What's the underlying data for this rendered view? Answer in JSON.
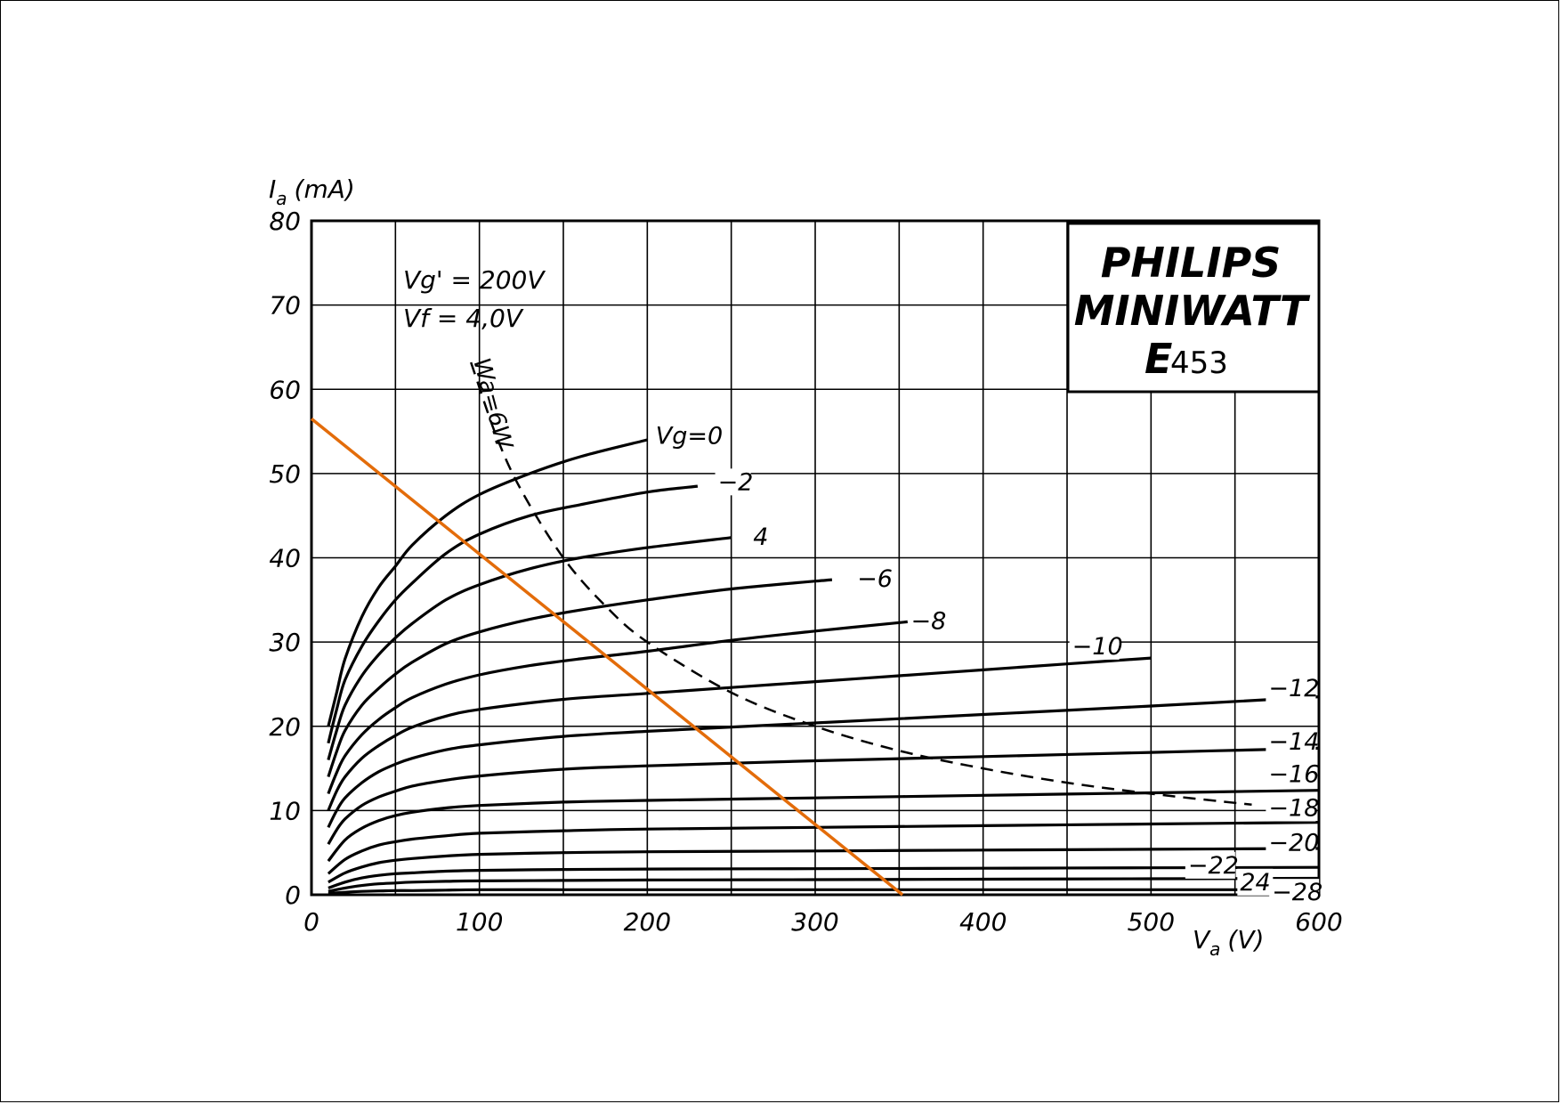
{
  "chart_data": {
    "type": "line",
    "ylabel_main": "I",
    "ylabel_sub": "a",
    "ylabel_unit": "(mA)",
    "xlabel_main": "V",
    "xlabel_sub": "a",
    "xlabel_unit": "(V)",
    "xlim": [
      0,
      600
    ],
    "ylim": [
      0,
      80
    ],
    "x_ticks": [
      "0",
      "100",
      "200",
      "300",
      "400",
      "500",
      "600"
    ],
    "y_ticks": [
      "0",
      "10",
      "20",
      "30",
      "40",
      "50",
      "60",
      "70",
      "80"
    ],
    "grid": true,
    "conditions": {
      "vg2": "Vg' = 200V",
      "vf": "Vf = 4,0V"
    },
    "brand_box": {
      "line1": "PHILIPS",
      "line2": "MINIWATT",
      "line3_main": "E",
      "line3_num": "453"
    },
    "dissipation_curve": {
      "label": "Wa=6W",
      "x": [
        95,
        110,
        125,
        150,
        175,
        200,
        250,
        300,
        350,
        400,
        450,
        500,
        560
      ],
      "y": [
        63.2,
        54.5,
        48,
        40,
        34.3,
        30,
        24,
        20,
        17.1,
        15,
        13.3,
        12,
        10.7
      ]
    },
    "series": [
      {
        "name": "Vg=0",
        "label_x": 205,
        "label_y": 54.5,
        "x": [
          10,
          15,
          20,
          30,
          40,
          50,
          60,
          80,
          100,
          130,
          160,
          200
        ],
        "y": [
          20,
          24,
          28,
          33,
          36.5,
          39,
          41.5,
          45,
          47.5,
          50,
          52,
          54
        ]
      },
      {
        "name": "−2",
        "label_x": 242,
        "label_y": 49,
        "x": [
          10,
          15,
          20,
          30,
          40,
          50,
          60,
          80,
          100,
          130,
          160,
          200,
          230
        ],
        "y": [
          18,
          22,
          25.5,
          29.5,
          32.5,
          35,
          37,
          40.5,
          42.8,
          45,
          46.3,
          47.8,
          48.5
        ]
      },
      {
        "name": "4",
        "label_x": 263,
        "label_y": 42.5,
        "x": [
          10,
          15,
          20,
          30,
          40,
          50,
          60,
          80,
          100,
          130,
          160,
          200,
          250
        ],
        "y": [
          16,
          19.5,
          22.5,
          26,
          28.5,
          30.5,
          32.2,
          35,
          36.8,
          38.7,
          40,
          41.2,
          42.4
        ]
      },
      {
        "name": "−6",
        "label_x": 325,
        "label_y": 37.5,
        "x": [
          10,
          15,
          20,
          30,
          40,
          50,
          60,
          80,
          100,
          130,
          160,
          200,
          250,
          310
        ],
        "y": [
          14,
          17,
          19.5,
          22.5,
          24.5,
          26.2,
          27.6,
          29.8,
          31.2,
          32.7,
          33.8,
          35,
          36.3,
          37.4
        ]
      },
      {
        "name": "−8",
        "label_x": 357,
        "label_y": 32.5,
        "x": [
          10,
          15,
          20,
          30,
          40,
          50,
          60,
          80,
          100,
          130,
          160,
          200,
          250,
          300,
          355
        ],
        "y": [
          12,
          14.5,
          16.5,
          19,
          20.8,
          22.2,
          23.4,
          25,
          26.1,
          27.2,
          28,
          28.9,
          30.2,
          31.3,
          32.4
        ]
      },
      {
        "name": "−10",
        "label_x": 453,
        "label_y": 29.5,
        "x": [
          10,
          15,
          20,
          30,
          40,
          50,
          60,
          80,
          100,
          150,
          200,
          250,
          300,
          350,
          400,
          450,
          500
        ],
        "y": [
          10,
          12.3,
          14,
          16.2,
          17.7,
          18.9,
          19.9,
          21.2,
          22,
          23.2,
          23.9,
          24.6,
          25.3,
          26,
          26.7,
          27.4,
          28.1
        ]
      },
      {
        "name": "−12",
        "label_x": 570,
        "label_y": 24.5,
        "x": [
          10,
          15,
          20,
          30,
          40,
          50,
          60,
          80,
          100,
          150,
          200,
          300,
          400,
          500,
          600
        ],
        "y": [
          8,
          10,
          11.5,
          13.3,
          14.6,
          15.5,
          16.2,
          17.2,
          17.8,
          18.8,
          19.4,
          20.4,
          21.4,
          22.4,
          23.5
        ]
      },
      {
        "name": "−14",
        "label_x": 570,
        "label_y": 18.2,
        "x": [
          10,
          15,
          20,
          30,
          40,
          50,
          60,
          80,
          100,
          150,
          200,
          300,
          400,
          500,
          600
        ],
        "y": [
          6,
          7.7,
          9,
          10.6,
          11.6,
          12.3,
          12.9,
          13.6,
          14.1,
          14.9,
          15.3,
          15.9,
          16.4,
          16.9,
          17.4
        ]
      },
      {
        "name": "−16",
        "label_x": 570,
        "label_y": 14.3,
        "x": [
          10,
          20,
          30,
          40,
          50,
          60,
          80,
          100,
          150,
          200,
          300,
          400,
          500,
          600
        ],
        "y": [
          4,
          6.5,
          7.9,
          8.8,
          9.4,
          9.8,
          10.3,
          10.6,
          11,
          11.2,
          11.5,
          11.8,
          12.1,
          12.4
        ]
      },
      {
        "name": "−18",
        "label_x": 570,
        "label_y": 10.3,
        "x": [
          10,
          20,
          30,
          40,
          50,
          60,
          80,
          100,
          150,
          200,
          300,
          400,
          500,
          600
        ],
        "y": [
          2.5,
          4.2,
          5.2,
          5.9,
          6.3,
          6.6,
          7,
          7.3,
          7.6,
          7.8,
          8,
          8.2,
          8.4,
          8.6
        ]
      },
      {
        "name": "−20",
        "label_x": 570,
        "label_y": 6.2,
        "x": [
          10,
          20,
          30,
          40,
          50,
          60,
          80,
          100,
          150,
          200,
          300,
          400,
          500,
          600
        ],
        "y": [
          1.5,
          2.6,
          3.3,
          3.8,
          4.1,
          4.3,
          4.6,
          4.8,
          5,
          5.1,
          5.2,
          5.3,
          5.4,
          5.5
        ]
      },
      {
        "name": "−22",
        "label_x": 522,
        "label_y": 3.5,
        "x": [
          10,
          20,
          30,
          40,
          50,
          60,
          80,
          100,
          150,
          200,
          300,
          400,
          500,
          600
        ],
        "y": [
          0.8,
          1.5,
          2,
          2.3,
          2.5,
          2.6,
          2.8,
          2.9,
          3,
          3.05,
          3.1,
          3.15,
          3.2,
          3.25
        ]
      },
      {
        "name": "24",
        "label_x": 553,
        "label_y": 1.5,
        "x": [
          10,
          20,
          30,
          40,
          50,
          60,
          80,
          100,
          150,
          200,
          300,
          400,
          500,
          600
        ],
        "y": [
          0.4,
          0.8,
          1.1,
          1.3,
          1.4,
          1.5,
          1.6,
          1.65,
          1.7,
          1.75,
          1.8,
          1.85,
          1.9,
          1.95
        ]
      },
      {
        "name": "−28",
        "label_x": 572,
        "label_y": 0.3,
        "x": [
          10,
          20,
          30,
          40,
          50,
          60,
          80,
          100,
          150,
          200,
          300,
          400,
          500,
          600
        ],
        "y": [
          0.15,
          0.3,
          0.4,
          0.45,
          0.5,
          0.5,
          0.55,
          0.6,
          0.6,
          0.6,
          0.6,
          0.6,
          0.6,
          0.6
        ]
      }
    ],
    "load_line": {
      "color": "#e36c0a",
      "x": [
        0,
        352
      ],
      "y": [
        56.5,
        0
      ]
    }
  }
}
